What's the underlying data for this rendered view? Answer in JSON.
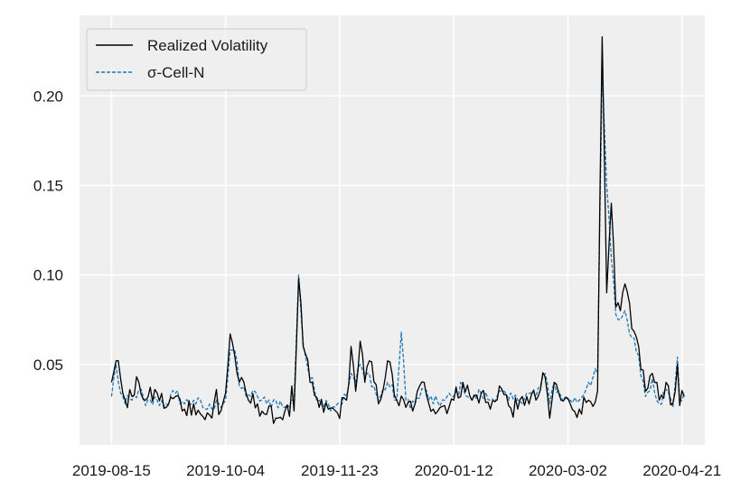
{
  "chart_data": {
    "type": "line",
    "title": "",
    "xlabel": "",
    "ylabel": "",
    "x_start": "2019-08-15",
    "x_end": "2020-04-22",
    "xlim": [
      "2019-08-01",
      "2020-05-01"
    ],
    "ylim": [
      0.005,
      0.245
    ],
    "x_ticks": [
      "2019-08-15",
      "2019-10-04",
      "2019-11-23",
      "2020-01-12",
      "2020-03-02",
      "2020-04-21"
    ],
    "y_ticks": [
      0.05,
      0.1,
      0.15,
      0.2
    ],
    "y_tick_labels": [
      "0.05",
      "0.10",
      "0.15",
      "0.20"
    ],
    "grid": true,
    "legend_position": "top-left",
    "series": [
      {
        "name": "Realized Volatility",
        "color": "#000000",
        "style": "solid",
        "anchors": [
          [
            "2019-08-15",
            0.04
          ],
          [
            "2019-08-17",
            0.052
          ],
          [
            "2019-08-19",
            0.042
          ],
          [
            "2019-08-21",
            0.03
          ],
          [
            "2019-08-24",
            0.032
          ],
          [
            "2019-08-27",
            0.04
          ],
          [
            "2019-08-30",
            0.03
          ],
          [
            "2019-09-04",
            0.034
          ],
          [
            "2019-09-08",
            0.026
          ],
          [
            "2019-09-12",
            0.032
          ],
          [
            "2019-09-16",
            0.025
          ],
          [
            "2019-09-20",
            0.028
          ],
          [
            "2019-09-24",
            0.021
          ],
          [
            "2019-09-28",
            0.02
          ],
          [
            "2019-09-30",
            0.036
          ],
          [
            "2019-10-01",
            0.022
          ],
          [
            "2019-10-04",
            0.034
          ],
          [
            "2019-10-06",
            0.067
          ],
          [
            "2019-10-08",
            0.055
          ],
          [
            "2019-10-10",
            0.04
          ],
          [
            "2019-10-14",
            0.03
          ],
          [
            "2019-10-18",
            0.028
          ],
          [
            "2019-10-22",
            0.022
          ],
          [
            "2019-10-26",
            0.02
          ],
          [
            "2019-10-30",
            0.024
          ],
          [
            "2019-11-01",
            0.021
          ],
          [
            "2019-11-02",
            0.038
          ],
          [
            "2019-11-03",
            0.024
          ],
          [
            "2019-11-05",
            0.098
          ],
          [
            "2019-11-07",
            0.06
          ],
          [
            "2019-11-10",
            0.04
          ],
          [
            "2019-11-14",
            0.026
          ],
          [
            "2019-11-18",
            0.025
          ],
          [
            "2019-11-22",
            0.023
          ],
          [
            "2019-11-26",
            0.03
          ],
          [
            "2019-11-28",
            0.06
          ],
          [
            "2019-11-30",
            0.035
          ],
          [
            "2019-12-02",
            0.063
          ],
          [
            "2019-12-04",
            0.04
          ],
          [
            "2019-12-06",
            0.052
          ],
          [
            "2019-12-10",
            0.028
          ],
          [
            "2019-12-14",
            0.052
          ],
          [
            "2019-12-18",
            0.03
          ],
          [
            "2019-12-22",
            0.026
          ],
          [
            "2019-12-26",
            0.028
          ],
          [
            "2019-12-30",
            0.04
          ],
          [
            "2020-01-03",
            0.025
          ],
          [
            "2020-01-08",
            0.027
          ],
          [
            "2020-01-12",
            0.03
          ],
          [
            "2020-01-16",
            0.04
          ],
          [
            "2020-01-20",
            0.03
          ],
          [
            "2020-01-24",
            0.034
          ],
          [
            "2020-01-28",
            0.025
          ],
          [
            "2020-02-01",
            0.038
          ],
          [
            "2020-02-05",
            0.027
          ],
          [
            "2020-02-09",
            0.025
          ],
          [
            "2020-02-13",
            0.032
          ],
          [
            "2020-02-17",
            0.03
          ],
          [
            "2020-02-21",
            0.043
          ],
          [
            "2020-02-23",
            0.02
          ],
          [
            "2020-02-25",
            0.04
          ],
          [
            "2020-02-28",
            0.03
          ],
          [
            "2020-03-03",
            0.028
          ],
          [
            "2020-03-07",
            0.025
          ],
          [
            "2020-03-11",
            0.03
          ],
          [
            "2020-03-15",
            0.035
          ],
          [
            "2020-03-17",
            0.233
          ],
          [
            "2020-03-19",
            0.09
          ],
          [
            "2020-03-21",
            0.14
          ],
          [
            "2020-03-23",
            0.082
          ],
          [
            "2020-03-25",
            0.08
          ],
          [
            "2020-03-27",
            0.095
          ],
          [
            "2020-03-30",
            0.07
          ],
          [
            "2020-04-02",
            0.06
          ],
          [
            "2020-04-05",
            0.035
          ],
          [
            "2020-04-08",
            0.045
          ],
          [
            "2020-04-11",
            0.03
          ],
          [
            "2020-04-14",
            0.04
          ],
          [
            "2020-04-17",
            0.028
          ],
          [
            "2020-04-19",
            0.05
          ],
          [
            "2020-04-20",
            0.027
          ],
          [
            "2020-04-22",
            0.032
          ]
        ]
      },
      {
        "name": "σ-Cell-N",
        "color": "#1f77b4",
        "style": "dashed",
        "anchors": [
          [
            "2019-08-15",
            0.032
          ],
          [
            "2019-08-17",
            0.05
          ],
          [
            "2019-08-19",
            0.034
          ],
          [
            "2019-08-21",
            0.028
          ],
          [
            "2019-08-24",
            0.03
          ],
          [
            "2019-08-27",
            0.036
          ],
          [
            "2019-08-30",
            0.027
          ],
          [
            "2019-09-04",
            0.03
          ],
          [
            "2019-09-08",
            0.028
          ],
          [
            "2019-09-12",
            0.034
          ],
          [
            "2019-09-16",
            0.028
          ],
          [
            "2019-09-20",
            0.03
          ],
          [
            "2019-09-24",
            0.026
          ],
          [
            "2019-09-28",
            0.025
          ],
          [
            "2019-09-30",
            0.03
          ],
          [
            "2019-10-01",
            0.028
          ],
          [
            "2019-10-04",
            0.03
          ],
          [
            "2019-10-06",
            0.058
          ],
          [
            "2019-10-08",
            0.058
          ],
          [
            "2019-10-10",
            0.038
          ],
          [
            "2019-10-14",
            0.033
          ],
          [
            "2019-10-18",
            0.032
          ],
          [
            "2019-10-22",
            0.028
          ],
          [
            "2019-10-26",
            0.03
          ],
          [
            "2019-10-30",
            0.026
          ],
          [
            "2019-11-01",
            0.026
          ],
          [
            "2019-11-02",
            0.03
          ],
          [
            "2019-11-03",
            0.03
          ],
          [
            "2019-11-05",
            0.1
          ],
          [
            "2019-11-07",
            0.062
          ],
          [
            "2019-11-10",
            0.042
          ],
          [
            "2019-11-14",
            0.03
          ],
          [
            "2019-11-18",
            0.028
          ],
          [
            "2019-11-22",
            0.028
          ],
          [
            "2019-11-26",
            0.032
          ],
          [
            "2019-11-28",
            0.045
          ],
          [
            "2019-11-30",
            0.04
          ],
          [
            "2019-12-02",
            0.05
          ],
          [
            "2019-12-04",
            0.042
          ],
          [
            "2019-12-06",
            0.045
          ],
          [
            "2019-12-10",
            0.03
          ],
          [
            "2019-12-14",
            0.04
          ],
          [
            "2019-12-18",
            0.03
          ],
          [
            "2019-12-20",
            0.068
          ],
          [
            "2019-12-22",
            0.03
          ],
          [
            "2019-12-26",
            0.028
          ],
          [
            "2019-12-30",
            0.036
          ],
          [
            "2020-01-03",
            0.028
          ],
          [
            "2020-01-08",
            0.03
          ],
          [
            "2020-01-12",
            0.032
          ],
          [
            "2020-01-16",
            0.038
          ],
          [
            "2020-01-20",
            0.03
          ],
          [
            "2020-01-24",
            0.034
          ],
          [
            "2020-01-28",
            0.03
          ],
          [
            "2020-02-01",
            0.035
          ],
          [
            "2020-02-05",
            0.03
          ],
          [
            "2020-02-09",
            0.03
          ],
          [
            "2020-02-13",
            0.034
          ],
          [
            "2020-02-17",
            0.032
          ],
          [
            "2020-02-21",
            0.045
          ],
          [
            "2020-02-23",
            0.028
          ],
          [
            "2020-02-25",
            0.04
          ],
          [
            "2020-02-28",
            0.032
          ],
          [
            "2020-03-03",
            0.03
          ],
          [
            "2020-03-07",
            0.03
          ],
          [
            "2020-03-11",
            0.04
          ],
          [
            "2020-03-15",
            0.045
          ],
          [
            "2020-03-17",
            0.213
          ],
          [
            "2020-03-19",
            0.15
          ],
          [
            "2020-03-21",
            0.11
          ],
          [
            "2020-03-23",
            0.078
          ],
          [
            "2020-03-25",
            0.075
          ],
          [
            "2020-03-27",
            0.08
          ],
          [
            "2020-03-30",
            0.065
          ],
          [
            "2020-04-02",
            0.055
          ],
          [
            "2020-04-05",
            0.032
          ],
          [
            "2020-04-08",
            0.042
          ],
          [
            "2020-04-11",
            0.028
          ],
          [
            "2020-04-14",
            0.036
          ],
          [
            "2020-04-17",
            0.026
          ],
          [
            "2020-04-19",
            0.054
          ],
          [
            "2020-04-20",
            0.03
          ],
          [
            "2020-04-22",
            0.034
          ]
        ]
      }
    ]
  }
}
